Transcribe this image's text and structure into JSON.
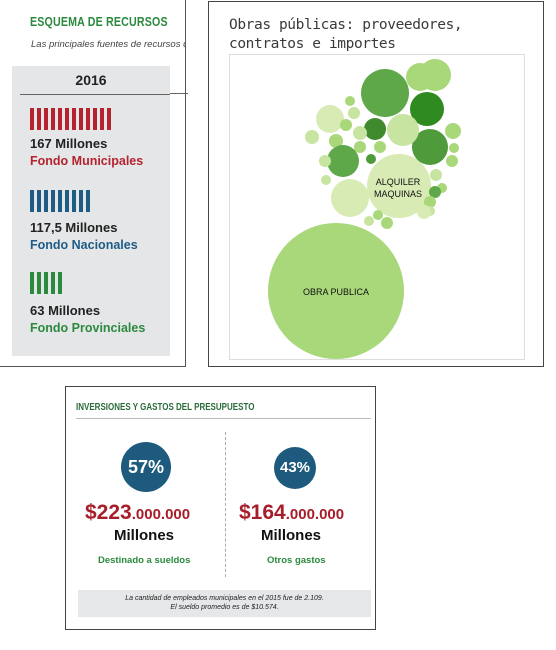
{
  "panel_resources": {
    "title": "ESQUEMA DE RECURSOS",
    "subtitle": "Las principales fuentes de recursos de",
    "year": "2016",
    "items": [
      {
        "bars": 12,
        "amount": "167 Millones",
        "fund": "Fondo Municipales",
        "color": "#b5232f"
      },
      {
        "bars": 9,
        "amount": "117,5 Millones",
        "fund": "Fondo Nacionales",
        "color": "#1f5c85"
      },
      {
        "bars": 5,
        "amount": "63 Millones",
        "fund": "Fondo Provinciales",
        "color": "#2b8a3e"
      }
    ]
  },
  "panel_bubbles": {
    "title": "Obras públicas: proveedores, contratos e importes",
    "labels": {
      "big": "OBRA PUBLICA",
      "medium_line1": "ALQUILER",
      "medium_line2": "MAQUINAS"
    }
  },
  "panel_budget": {
    "title": "INVERSIONES Y GASTOS DEL PRESUPUESTO",
    "left": {
      "percent": "57%",
      "amount_big": "$223",
      "amount_small": ".000.000",
      "unit": "Millones",
      "label": "Destinado a sueldos"
    },
    "right": {
      "percent": "43%",
      "amount_big": "$164",
      "amount_small": ".000.000",
      "unit": "Millones",
      "label": "Otros gastos"
    },
    "footnote_line1": "La cantidad de empleados municipales en el 2015 fue de 2.109.",
    "footnote_line2": "El sueldo promedio es de $10.574."
  },
  "colors": {
    "red": "#b5232f",
    "blue": "#1f5c85",
    "green": "#2b8a3e",
    "circle_blue": "#1e5a7d",
    "money_red": "#a71d2a"
  }
}
